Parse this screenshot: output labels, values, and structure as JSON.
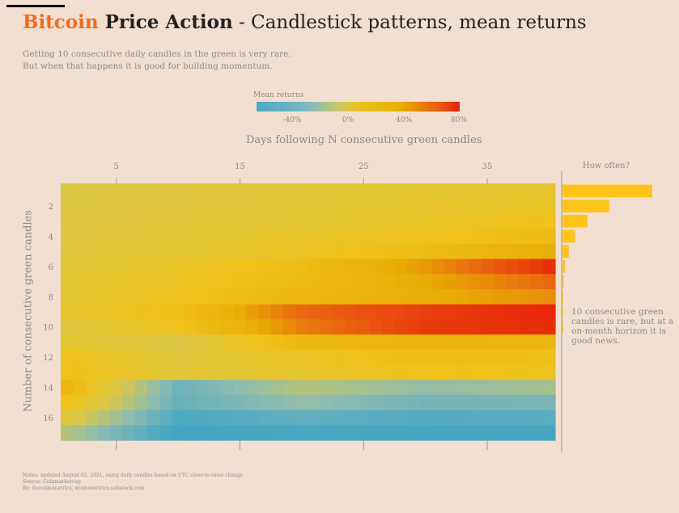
{
  "header": {
    "title_brand": "Bitcoin",
    "title_bold": " Price Action",
    "title_rest": " - Candlestick patterns, mean returns",
    "subtitle_line1": "Getting 10 consecutive daily candles in the green is very rare.",
    "subtitle_line2": "But when that happens it is good for building momentum."
  },
  "legend": {
    "title": "Mean returns",
    "ticks": [
      "-40%",
      "0%",
      "40%",
      "80%"
    ]
  },
  "annotation": {
    "how_often": "How often?",
    "text": "10 consecutive green candles is rare, but at a on-month horizon it is good news."
  },
  "notes": {
    "line1": "Notes: updated August 02, 2021, using daily candles based on UTC close to close change",
    "line2": "Source: Coinmarketcap",
    "line3": "By: @ecoinometrics, ecoinometrics.substack.com"
  },
  "colors": {
    "brand": "#f26b1d",
    "background": "#f3dfd0",
    "bar": "#ffc41a"
  },
  "chart_data": {
    "type": "heatmap",
    "xlabel": "Days following N consecutive green candles",
    "ylabel": "Number of consecutive green candles",
    "x_ticks": [
      5,
      15,
      25,
      35
    ],
    "y_ticks": [
      2,
      4,
      6,
      8,
      10,
      12,
      14,
      16
    ],
    "x_range": [
      1,
      40
    ],
    "y_range": [
      1,
      17
    ],
    "color_scale": {
      "stops": [
        -60,
        -40,
        -20,
        0,
        20,
        40,
        60,
        80
      ],
      "colors": [
        "#2f9cc0",
        "#4ea9c3",
        "#8dbcb0",
        "#d8c84a",
        "#f0c21a",
        "#e8ac05",
        "#ea6010",
        "#e8200a"
      ]
    },
    "mean_returns_by_row": {
      "1": {
        "anchors_day": [
          1,
          10,
          20,
          30,
          40
        ],
        "values": [
          3,
          5,
          8,
          10,
          12
        ]
      },
      "2": {
        "anchors_day": [
          1,
          10,
          20,
          30,
          40
        ],
        "values": [
          3,
          6,
          9,
          12,
          14
        ]
      },
      "3": {
        "anchors_day": [
          1,
          10,
          20,
          30,
          40
        ],
        "values": [
          4,
          7,
          10,
          14,
          20
        ]
      },
      "4": {
        "anchors_day": [
          1,
          10,
          20,
          30,
          40
        ],
        "values": [
          5,
          9,
          13,
          18,
          26
        ]
      },
      "5": {
        "anchors_day": [
          1,
          10,
          20,
          30,
          40
        ],
        "values": [
          6,
          10,
          16,
          25,
          38
        ]
      },
      "6": {
        "anchors_day": [
          1,
          10,
          20,
          30,
          40
        ],
        "values": [
          8,
          14,
          24,
          45,
          75
        ]
      },
      "7": {
        "anchors_day": [
          1,
          10,
          20,
          30,
          40
        ],
        "values": [
          10,
          16,
          26,
          40,
          58
        ]
      },
      "8": {
        "anchors_day": [
          1,
          10,
          20,
          30,
          40
        ],
        "values": [
          10,
          18,
          30,
          38,
          48
        ]
      },
      "9": {
        "anchors_day": [
          1,
          10,
          20,
          30,
          40
        ],
        "values": [
          12,
          22,
          58,
          70,
          78
        ]
      },
      "10": {
        "anchors_day": [
          1,
          10,
          20,
          30,
          40
        ],
        "values": [
          6,
          18,
          52,
          72,
          76
        ]
      },
      "11": {
        "anchors_day": [
          1,
          10,
          20,
          30,
          40
        ],
        "values": [
          10,
          2,
          28,
          34,
          30
        ]
      },
      "12": {
        "anchors_day": [
          1,
          10,
          20,
          30,
          40
        ],
        "values": [
          18,
          6,
          16,
          24,
          22
        ]
      },
      "13": {
        "anchors_day": [
          1,
          10,
          20,
          30,
          40
        ],
        "values": [
          20,
          8,
          12,
          20,
          18
        ]
      },
      "14": {
        "anchors_day": [
          1,
          10,
          20,
          30,
          40
        ],
        "values": [
          30,
          -30,
          -10,
          -18,
          -14
        ]
      },
      "15": {
        "anchors_day": [
          1,
          10,
          20,
          30,
          40
        ],
        "values": [
          20,
          -32,
          -18,
          -28,
          -26
        ]
      },
      "16": {
        "anchors_day": [
          1,
          10,
          20,
          30,
          40
        ],
        "values": [
          6,
          -40,
          -34,
          -38,
          -36
        ]
      },
      "17": {
        "anchors_day": [
          1,
          10,
          20,
          30,
          40
        ],
        "values": [
          -10,
          -46,
          -42,
          -44,
          -44
        ]
      }
    },
    "how_often_bars": [
      100,
      52,
      28,
      14,
      7,
      3,
      1.5,
      0.8,
      0.5,
      0.3,
      0,
      0,
      0,
      0,
      0,
      0,
      0
    ]
  }
}
